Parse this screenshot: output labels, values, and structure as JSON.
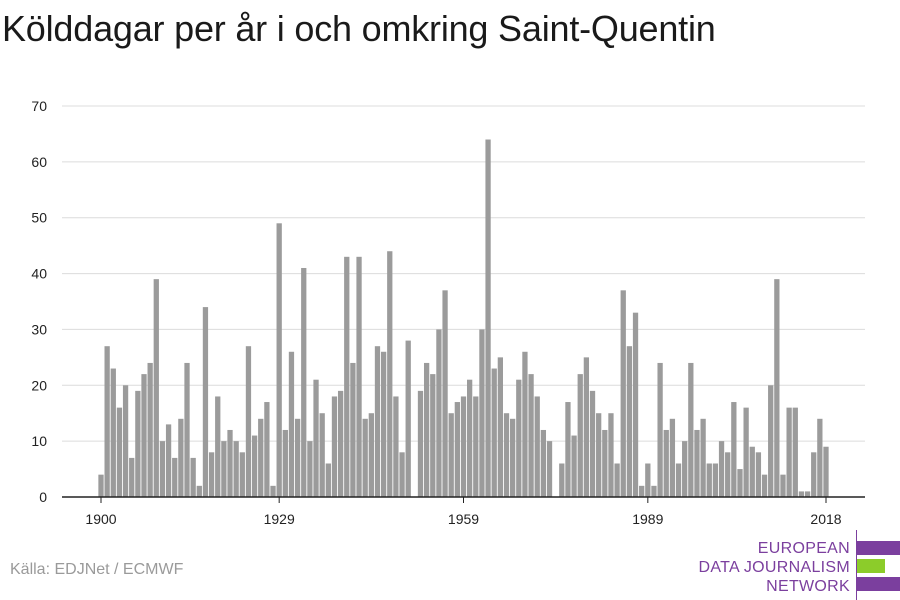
{
  "title": "Kölddagar per år i och omkring Saint-Quentin",
  "source": "Källa: EDJNet / ECMWF",
  "logo": {
    "lines": [
      "EUROPEAN",
      "DATA JOURNALISM",
      "NETWORK"
    ],
    "colors": [
      "#7b3f9e",
      "#8ccc2a",
      "#7b3f9e"
    ]
  },
  "chart_data": {
    "type": "bar",
    "x_start": 1900,
    "x_end": 2018,
    "x": [
      1900,
      1901,
      1902,
      1903,
      1904,
      1905,
      1906,
      1907,
      1908,
      1909,
      1910,
      1911,
      1912,
      1913,
      1914,
      1915,
      1916,
      1917,
      1918,
      1919,
      1920,
      1921,
      1922,
      1923,
      1924,
      1925,
      1926,
      1927,
      1928,
      1929,
      1930,
      1931,
      1932,
      1933,
      1934,
      1935,
      1936,
      1937,
      1938,
      1939,
      1940,
      1941,
      1942,
      1943,
      1944,
      1945,
      1946,
      1947,
      1948,
      1949,
      1950,
      1951,
      1952,
      1953,
      1954,
      1955,
      1956,
      1957,
      1958,
      1959,
      1960,
      1961,
      1962,
      1963,
      1964,
      1965,
      1966,
      1967,
      1968,
      1969,
      1970,
      1971,
      1972,
      1973,
      1974,
      1975,
      1976,
      1977,
      1978,
      1979,
      1980,
      1981,
      1982,
      1983,
      1984,
      1985,
      1986,
      1987,
      1988,
      1989,
      1990,
      1991,
      1992,
      1993,
      1994,
      1995,
      1996,
      1997,
      1998,
      1999,
      2000,
      2001,
      2002,
      2003,
      2004,
      2005,
      2006,
      2007,
      2008,
      2009,
      2010,
      2011,
      2012,
      2013,
      2014,
      2015,
      2016,
      2017,
      2018
    ],
    "values": [
      4,
      27,
      23,
      16,
      20,
      7,
      19,
      22,
      24,
      39,
      10,
      13,
      7,
      14,
      24,
      7,
      2,
      34,
      8,
      18,
      10,
      12,
      10,
      8,
      27,
      11,
      14,
      17,
      2,
      49,
      12,
      26,
      14,
      41,
      10,
      21,
      15,
      6,
      18,
      19,
      43,
      24,
      43,
      14,
      15,
      27,
      26,
      44,
      18,
      8,
      28,
      0,
      19,
      24,
      22,
      30,
      37,
      15,
      17,
      18,
      21,
      18,
      30,
      64,
      23,
      25,
      15,
      14,
      21,
      26,
      22,
      18,
      12,
      10,
      0,
      6,
      17,
      11,
      22,
      25,
      19,
      15,
      12,
      15,
      6,
      37,
      27,
      33,
      2,
      6,
      2,
      24,
      12,
      14,
      6,
      10,
      24,
      12,
      14,
      6,
      6,
      10,
      8,
      17,
      5,
      16,
      9,
      8,
      4,
      20,
      39,
      4,
      16,
      16,
      1,
      1,
      8,
      14,
      9
    ],
    "ylim": [
      0,
      70
    ],
    "yticks": [
      0,
      10,
      20,
      30,
      40,
      50,
      60,
      70
    ],
    "xticks": [
      1900,
      1929,
      1959,
      1989,
      2018
    ],
    "bar_color": "#9b9b9b",
    "grid": true
  }
}
